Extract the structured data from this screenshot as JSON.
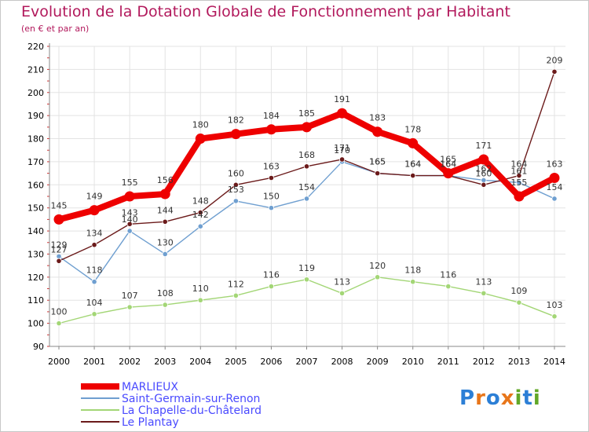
{
  "title": "Evolution de la Dotation Globale de Fonctionnement par Habitant",
  "subtitle": "(en € et par an)",
  "logo": {
    "text": "Proxiti",
    "letters": [
      "P",
      "r",
      "o",
      "x",
      "i",
      "t",
      "i"
    ],
    "colors": [
      "#2c7fd6",
      "#e8761a",
      "#2c7fd6",
      "#e8761a",
      "#62a828",
      "#2c7fd6",
      "#62a828"
    ]
  },
  "chart_data": {
    "type": "line",
    "x": [
      "2000",
      "2001",
      "2002",
      "2003",
      "2004",
      "2005",
      "2006",
      "2007",
      "2008",
      "2009",
      "2010",
      "2011",
      "2012",
      "2013",
      "2014"
    ],
    "ylim": [
      90,
      220
    ],
    "yticks": [
      90,
      100,
      110,
      120,
      130,
      140,
      150,
      160,
      170,
      180,
      190,
      200,
      210,
      220
    ],
    "grid": true,
    "legend_position": "bottom-left",
    "series": [
      {
        "name": "MARLIEUX",
        "color": "#ee0000",
        "values": [
          145,
          149,
          155,
          156,
          180,
          182,
          184,
          185,
          191,
          183,
          178,
          165,
          171,
          155,
          163
        ]
      },
      {
        "name": "Saint-Germain-sur-Renon",
        "color": "#6f9fd0",
        "values": [
          129,
          118,
          140,
          130,
          142,
          153,
          150,
          154,
          170,
          165,
          164,
          164,
          162,
          161,
          154
        ]
      },
      {
        "name": "La Chapelle-du-Châtelard",
        "color": "#a3d676",
        "values": [
          100,
          104,
          107,
          108,
          110,
          112,
          116,
          119,
          113,
          120,
          118,
          116,
          113,
          109,
          103
        ]
      },
      {
        "name": "Le Plantay",
        "color": "#6b1a1a",
        "values": [
          127,
          134,
          143,
          144,
          148,
          160,
          163,
          168,
          171,
          165,
          164,
          164,
          160,
          164,
          209
        ]
      }
    ]
  }
}
